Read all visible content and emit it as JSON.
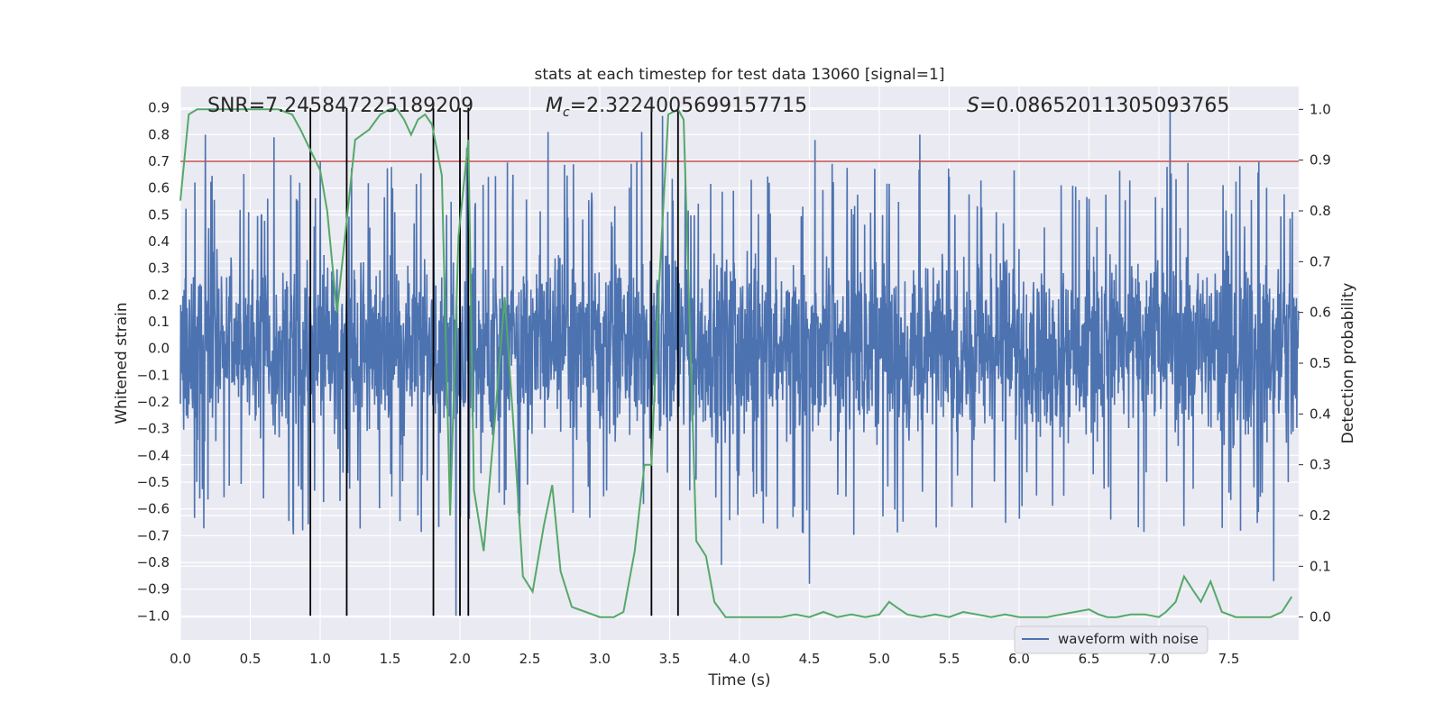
{
  "chart_data": {
    "type": "line",
    "title": "stats at each timestep for test data 13060 [signal=1]",
    "xlabel": "Time (s)",
    "ylabel_left": "Whitened strain",
    "ylabel_right": "Detection probability",
    "xlim": [
      0.0,
      8.0
    ],
    "ylim_left": [
      -1.09,
      0.98
    ],
    "ylim_right": [
      -0.045,
      1.045
    ],
    "xticks": [
      "0.0",
      "0.5",
      "1.0",
      "1.5",
      "2.0",
      "2.5",
      "3.0",
      "3.5",
      "4.0",
      "4.5",
      "5.0",
      "5.5",
      "6.0",
      "6.5",
      "7.0",
      "7.5"
    ],
    "yticks_left": [
      "0.9",
      "0.8",
      "0.7",
      "0.6",
      "0.5",
      "0.4",
      "0.3",
      "0.2",
      "0.1",
      "0.0",
      "−0.1",
      "−0.2",
      "−0.3",
      "−0.4",
      "−0.5",
      "−0.6",
      "−0.7",
      "−0.8",
      "−0.9",
      "−1.0"
    ],
    "yticks_right": [
      "1.0",
      "0.9",
      "0.8",
      "0.7",
      "0.6",
      "0.5",
      "0.4",
      "0.3",
      "0.2",
      "0.1",
      "0.0"
    ],
    "grid": true,
    "legend": {
      "placement": "lower-right",
      "entries": [
        "waveform with noise"
      ]
    },
    "annotations": {
      "snr_label": "SNR=7.245847225189209",
      "mc_symbol": "M",
      "mc_sub": "c",
      "mc_value": "=2.3224005699157715",
      "s_symbol": "S",
      "s_value": "=0.08652011305093765"
    },
    "threshold": {
      "value": 0.7,
      "axis": "left",
      "color": "#c44e52"
    },
    "vertical_lines_x": [
      0.93,
      1.19,
      1.81,
      2.0,
      2.06,
      3.37,
      3.56
    ],
    "waveform": {
      "name": "waveform with noise",
      "color": "#4c72b0",
      "typical_envelope": 0.45,
      "notable_peaks": [
        {
          "x": 0.18,
          "y": 0.8
        },
        {
          "x": 0.67,
          "y": 0.79
        },
        {
          "x": 1.97,
          "y": -1.0
        },
        {
          "x": 2.05,
          "y": 0.75
        },
        {
          "x": 2.63,
          "y": 0.81
        },
        {
          "x": 3.3,
          "y": 0.81
        },
        {
          "x": 3.45,
          "y": 0.87
        },
        {
          "x": 3.87,
          "y": -0.81
        },
        {
          "x": 4.5,
          "y": -0.88
        },
        {
          "x": 4.54,
          "y": 0.78
        },
        {
          "x": 5.29,
          "y": 0.8
        },
        {
          "x": 7.08,
          "y": 0.89
        },
        {
          "x": 7.82,
          "y": -0.87
        }
      ]
    },
    "probability": {
      "color": "#55a868",
      "x": [
        0.0,
        0.06,
        0.12,
        0.2,
        0.3,
        0.4,
        0.5,
        0.6,
        0.7,
        0.8,
        0.86,
        0.93,
        1.0,
        1.05,
        1.12,
        1.19,
        1.25,
        1.35,
        1.43,
        1.5,
        1.55,
        1.6,
        1.65,
        1.7,
        1.75,
        1.8,
        1.87,
        1.93,
        1.99,
        2.06,
        2.1,
        2.17,
        2.25,
        2.32,
        2.38,
        2.45,
        2.52,
        2.6,
        2.66,
        2.72,
        2.8,
        2.9,
        3.0,
        3.1,
        3.17,
        3.25,
        3.32,
        3.37,
        3.42,
        3.49,
        3.56,
        3.6,
        3.69,
        3.76,
        3.82,
        3.9,
        4.0,
        4.1,
        4.3,
        4.4,
        4.5,
        4.6,
        4.7,
        4.8,
        4.9,
        5.0,
        5.07,
        5.12,
        5.2,
        5.3,
        5.4,
        5.5,
        5.6,
        5.7,
        5.8,
        5.9,
        6.0,
        6.1,
        6.2,
        6.3,
        6.4,
        6.5,
        6.57,
        6.63,
        6.7,
        6.8,
        6.9,
        7.0,
        7.05,
        7.12,
        7.18,
        7.25,
        7.3,
        7.37,
        7.45,
        7.55,
        7.7,
        7.8,
        7.88,
        7.95
      ],
      "y": [
        0.82,
        0.99,
        1.0,
        1.0,
        1.0,
        1.0,
        1.0,
        1.0,
        1.0,
        0.99,
        0.96,
        0.92,
        0.88,
        0.8,
        0.6,
        0.78,
        0.94,
        0.96,
        0.99,
        1.0,
        1.0,
        0.98,
        0.95,
        0.98,
        0.99,
        0.97,
        0.87,
        0.2,
        0.75,
        0.94,
        0.25,
        0.13,
        0.39,
        0.63,
        0.39,
        0.08,
        0.05,
        0.18,
        0.26,
        0.09,
        0.02,
        0.01,
        0.0,
        0.0,
        0.01,
        0.13,
        0.3,
        0.3,
        0.63,
        0.99,
        1.0,
        0.98,
        0.15,
        0.12,
        0.03,
        0.0,
        0.0,
        0.0,
        0.0,
        0.005,
        0.0,
        0.01,
        0.0,
        0.005,
        0.0,
        0.005,
        0.03,
        0.02,
        0.005,
        0.0,
        0.005,
        0.0,
        0.01,
        0.005,
        0.0,
        0.005,
        0.0,
        0.0,
        0.0,
        0.005,
        0.01,
        0.015,
        0.005,
        0.0,
        0.0,
        0.005,
        0.005,
        0.0,
        0.01,
        0.03,
        0.08,
        0.05,
        0.03,
        0.07,
        0.01,
        0.0,
        0.0,
        0.0,
        0.01,
        0.04
      ]
    }
  }
}
